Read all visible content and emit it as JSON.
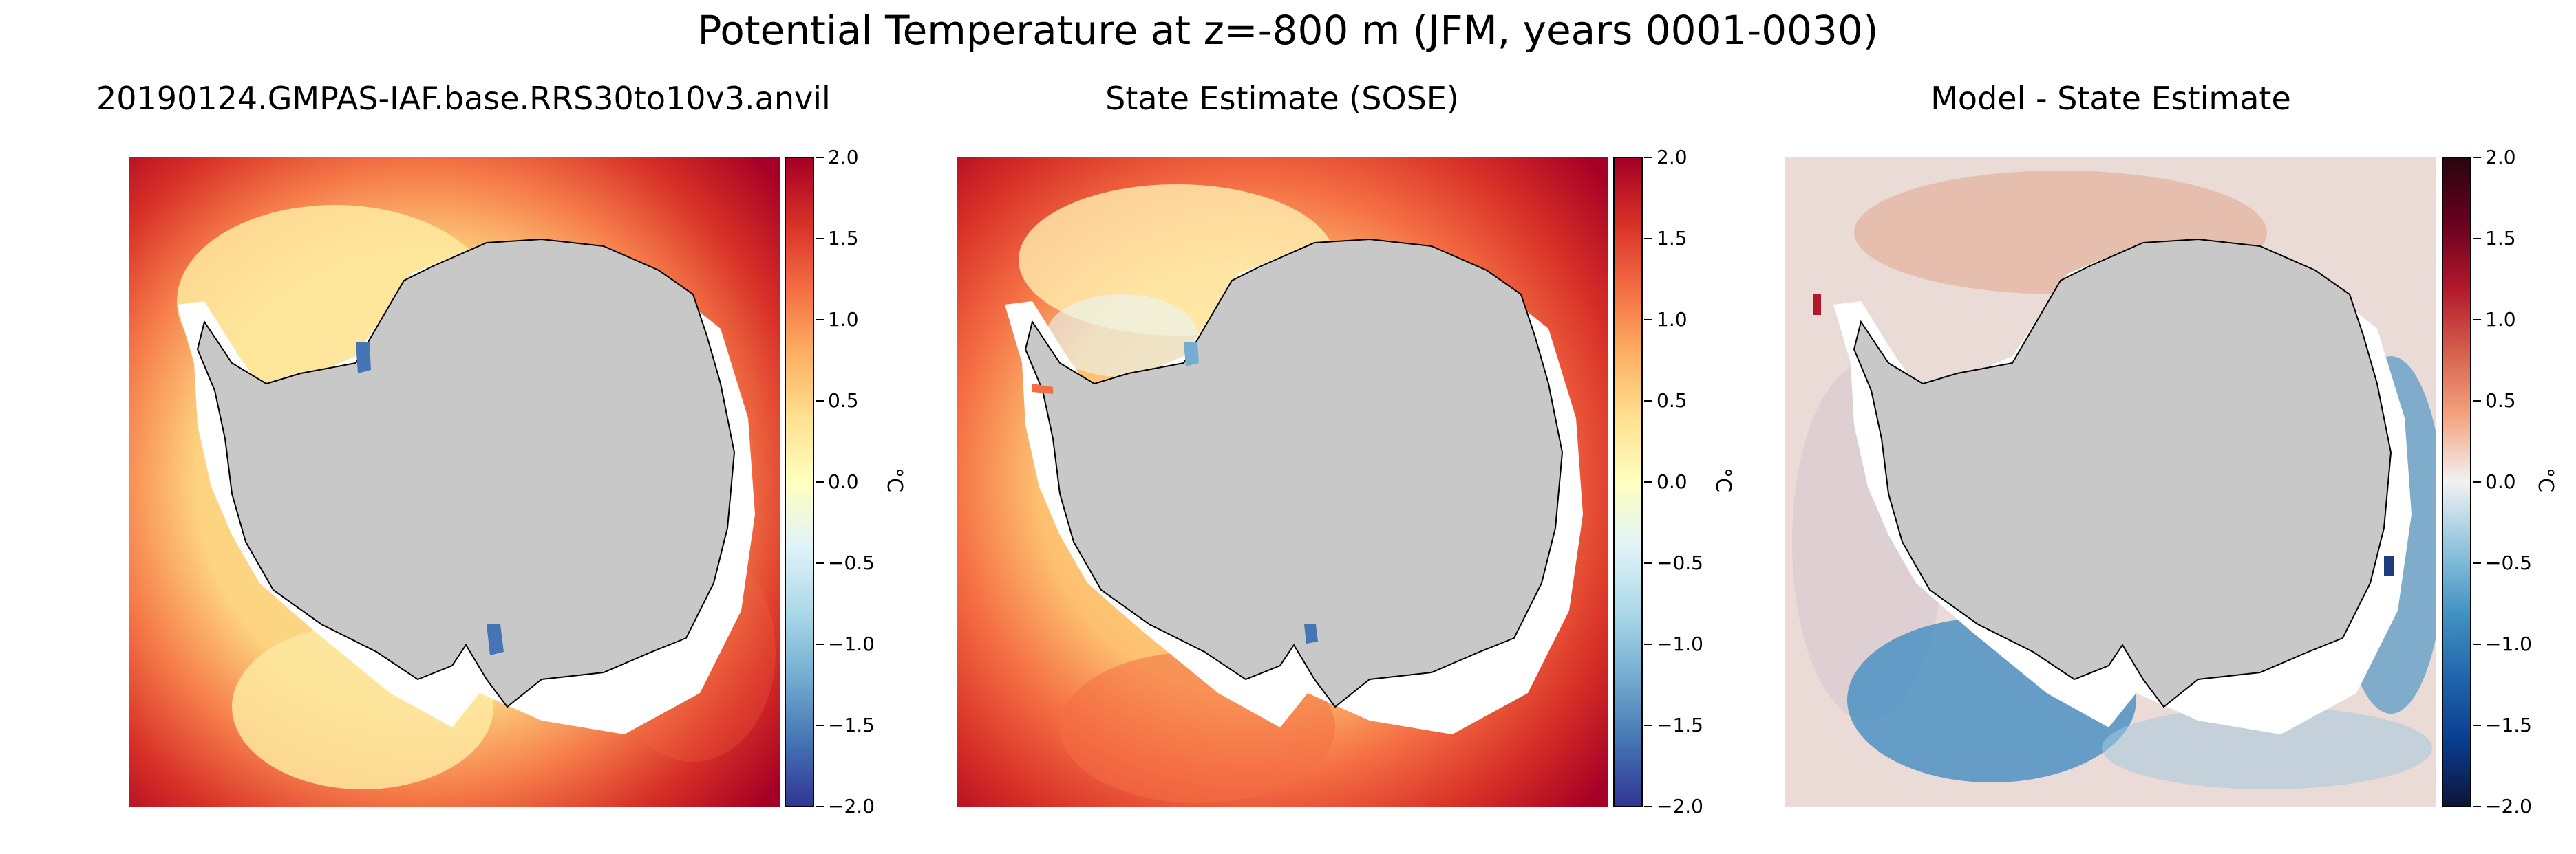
{
  "figure": {
    "title": "Potential Temperature at z=-800 m (JFM, years 0001-0030)"
  },
  "panels": [
    {
      "title": "20190124.GMPAS-IAF.base.RRS30to10v3.anvil",
      "colormap": "RdYlBu_r",
      "colorbar": {
        "label": "°C",
        "ticks": [
          "2.0",
          "1.5",
          "1.0",
          "0.5",
          "0.0",
          "−0.5",
          "−1.0",
          "−1.5",
          "−2.0"
        ],
        "min": -2.0,
        "max": 2.0,
        "colors": [
          "#313695",
          "#4575b4",
          "#74add1",
          "#abd9e9",
          "#e0f3f8",
          "#ffffbf",
          "#fee090",
          "#fdae61",
          "#f46d43",
          "#d73027",
          "#a50026"
        ]
      }
    },
    {
      "title": "State Estimate (SOSE)",
      "colormap": "RdYlBu_r",
      "colorbar": {
        "label": "°C",
        "ticks": [
          "2.0",
          "1.5",
          "1.0",
          "0.5",
          "0.0",
          "−0.5",
          "−1.0",
          "−1.5",
          "−2.0"
        ],
        "min": -2.0,
        "max": 2.0,
        "colors": [
          "#313695",
          "#4575b4",
          "#74add1",
          "#abd9e9",
          "#e0f3f8",
          "#ffffbf",
          "#fee090",
          "#fdae61",
          "#f46d43",
          "#d73027",
          "#a50026"
        ]
      }
    },
    {
      "title": "Model - State Estimate",
      "colormap": "RdBu_r",
      "colorbar": {
        "label": "°C",
        "ticks": [
          "2.0",
          "1.5",
          "1.0",
          "0.5",
          "0.0",
          "−0.5",
          "−1.0",
          "−1.5",
          "−2.0"
        ],
        "min": -2.0,
        "max": 2.0,
        "colors": [
          "#0c1538",
          "#0a3d8f",
          "#2166ac",
          "#4393c3",
          "#92c5de",
          "#f2f2f2",
          "#f4a582",
          "#d6604d",
          "#b2182b",
          "#67001f",
          "#2a0410"
        ]
      }
    }
  ],
  "colors": {
    "land": "#c8c8c8",
    "ice_shelf": "#ffffff",
    "coastline": "#000000"
  }
}
